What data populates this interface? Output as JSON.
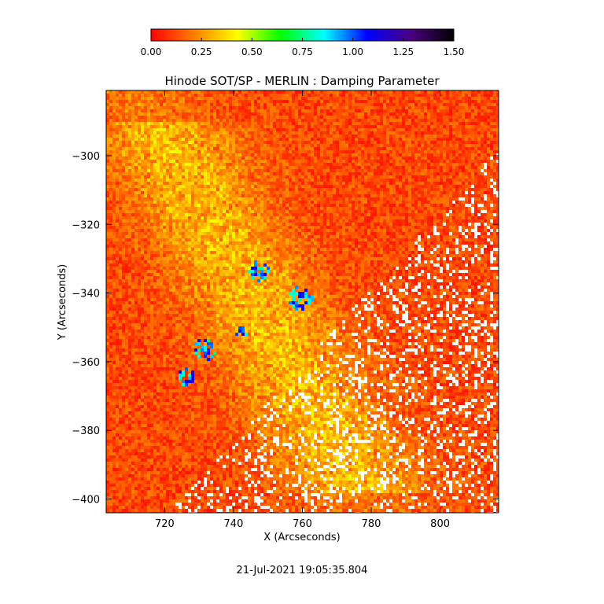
{
  "chart_data": {
    "type": "heatmap",
    "title": "Hinode SOT/SP - MERLIN : Damping Parameter",
    "xlabel": "X (Arcseconds)",
    "ylabel": "Y (Arcseconds)",
    "xlim": [
      703,
      817
    ],
    "ylim": [
      -404,
      -281
    ],
    "x_ticks": [
      720,
      740,
      760,
      780,
      800
    ],
    "y_ticks": [
      -300,
      -320,
      -340,
      -360,
      -380,
      -400
    ],
    "colorbar": {
      "range": [
        0.0,
        1.5
      ],
      "ticks": [
        "0.00",
        "0.25",
        "0.50",
        "0.75",
        "1.00",
        "1.25",
        "1.50"
      ],
      "colors": [
        "#ff0000",
        "#ff7f00",
        "#ffff00",
        "#00ff00",
        "#00ffff",
        "#0000ff",
        "#4b0082",
        "#000000"
      ]
    },
    "typical_value": 0.12,
    "features": [
      {
        "name": "enhanced arc",
        "value": 0.3
      },
      {
        "name": "peak knots",
        "value": 1.2
      }
    ],
    "timestamp": "21-Jul-2021 19:05:35.804"
  }
}
